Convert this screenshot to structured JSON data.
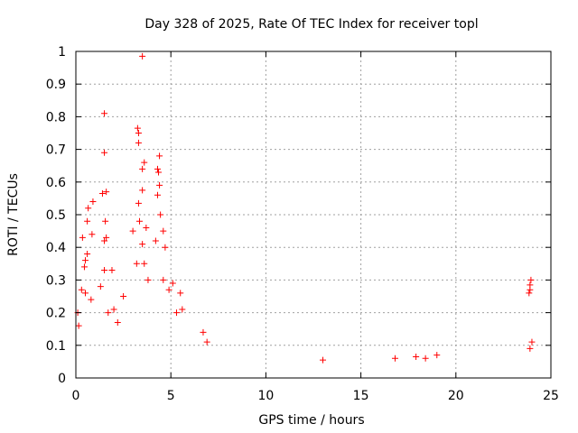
{
  "chart_data": {
    "type": "scatter",
    "title": "Day 328 of 2025, Rate Of TEC Index for receiver topl",
    "xlabel": "GPS time / hours",
    "ylabel": "ROTI / TECUs",
    "xlim": [
      0,
      25
    ],
    "ylim": [
      0,
      1
    ],
    "x_ticks": [
      0,
      5,
      10,
      15,
      20,
      25
    ],
    "y_ticks": [
      0,
      0.1,
      0.2,
      0.3,
      0.4,
      0.5,
      0.6,
      0.7,
      0.8,
      0.9,
      1
    ],
    "x_tick_labels": [
      "0",
      "5",
      "10",
      "15",
      "20",
      "25"
    ],
    "y_tick_labels": [
      "0",
      "0.1",
      "0.2",
      "0.3",
      "0.4",
      "0.5",
      "0.6",
      "0.7",
      "0.8",
      "0.9",
      "1"
    ],
    "grid": true,
    "marker": "plus",
    "color": "#ff0000",
    "legend": "none",
    "series": [
      {
        "values_xy": [
          [
            3.5,
            0.985
          ],
          [
            1.5,
            0.81
          ],
          [
            3.25,
            0.765
          ],
          [
            3.3,
            0.75
          ],
          [
            3.3,
            0.72
          ],
          [
            1.5,
            0.69
          ],
          [
            4.4,
            0.68
          ],
          [
            3.6,
            0.66
          ],
          [
            4.3,
            0.64
          ],
          [
            4.35,
            0.63
          ],
          [
            3.5,
            0.64
          ],
          [
            4.4,
            0.59
          ],
          [
            3.5,
            0.575
          ],
          [
            1.6,
            0.57
          ],
          [
            4.3,
            0.56
          ],
          [
            1.4,
            0.565
          ],
          [
            0.9,
            0.54
          ],
          [
            0.65,
            0.52
          ],
          [
            3.3,
            0.535
          ],
          [
            4.45,
            0.5
          ],
          [
            3.35,
            0.48
          ],
          [
            0.6,
            0.48
          ],
          [
            1.55,
            0.48
          ],
          [
            3.7,
            0.46
          ],
          [
            4.6,
            0.45
          ],
          [
            3.0,
            0.45
          ],
          [
            0.85,
            0.44
          ],
          [
            0.35,
            0.43
          ],
          [
            1.6,
            0.43
          ],
          [
            1.5,
            0.42
          ],
          [
            4.2,
            0.42
          ],
          [
            3.5,
            0.41
          ],
          [
            4.7,
            0.4
          ],
          [
            0.6,
            0.38
          ],
          [
            0.5,
            0.36
          ],
          [
            3.2,
            0.35
          ],
          [
            0.45,
            0.34
          ],
          [
            1.5,
            0.33
          ],
          [
            1.9,
            0.33
          ],
          [
            3.6,
            0.35
          ],
          [
            0.3,
            0.27
          ],
          [
            0.5,
            0.26
          ],
          [
            1.3,
            0.28
          ],
          [
            3.8,
            0.3
          ],
          [
            4.6,
            0.3
          ],
          [
            5.1,
            0.29
          ],
          [
            0.8,
            0.24
          ],
          [
            1.7,
            0.2
          ],
          [
            2.5,
            0.25
          ],
          [
            4.9,
            0.27
          ],
          [
            5.5,
            0.26
          ],
          [
            5.6,
            0.21
          ],
          [
            5.3,
            0.2
          ],
          [
            2.0,
            0.21
          ],
          [
            2.2,
            0.17
          ],
          [
            0.1,
            0.2
          ],
          [
            0.15,
            0.16
          ],
          [
            6.7,
            0.14
          ],
          [
            6.9,
            0.11
          ],
          [
            23.95,
            0.3
          ],
          [
            23.9,
            0.285
          ],
          [
            23.9,
            0.27
          ],
          [
            23.85,
            0.26
          ],
          [
            24.0,
            0.11
          ],
          [
            23.9,
            0.09
          ],
          [
            19.0,
            0.07
          ],
          [
            16.8,
            0.06
          ],
          [
            17.9,
            0.065
          ],
          [
            18.4,
            0.06
          ],
          [
            13.0,
            0.055
          ]
        ]
      }
    ]
  }
}
